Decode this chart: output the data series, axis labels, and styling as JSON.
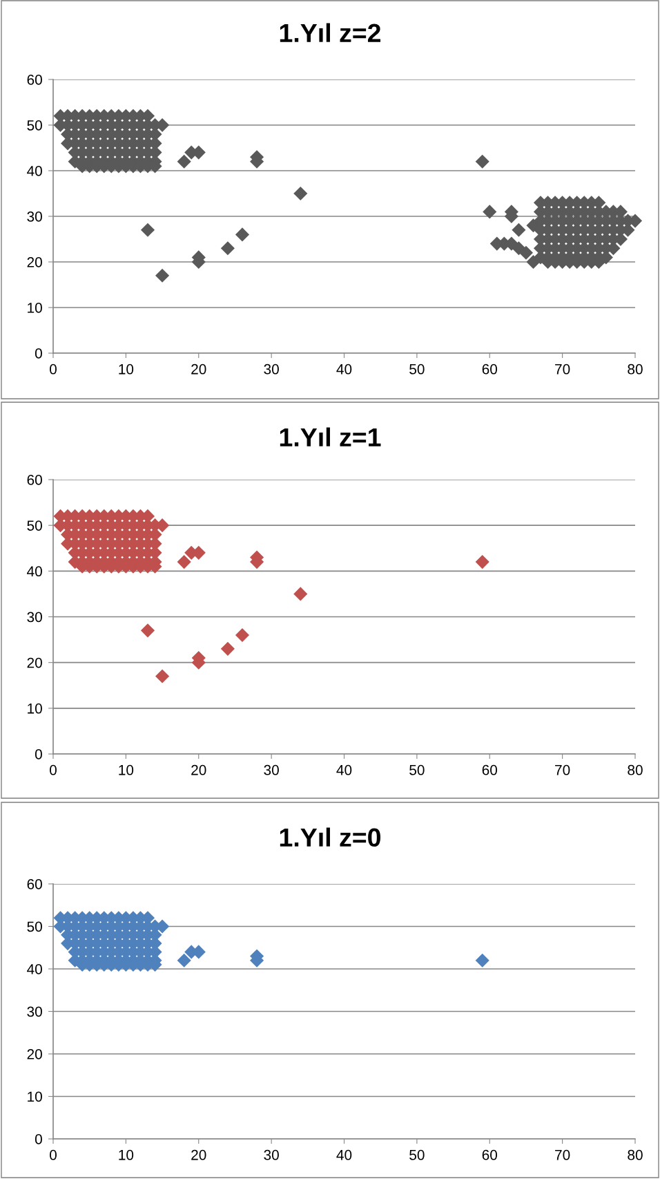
{
  "chart_data": [
    {
      "type": "scatter",
      "title": "1.Yıl z=2",
      "xlim": [
        0,
        80
      ],
      "ylim": [
        0,
        60
      ],
      "xticks": [
        0,
        10,
        20,
        30,
        40,
        50,
        60,
        70,
        80
      ],
      "yticks": [
        0,
        10,
        20,
        30,
        40,
        50,
        60
      ],
      "grid": "y",
      "marker": "diamond",
      "series": [
        {
          "color": "#595959",
          "x": [
            1,
            2,
            3,
            4,
            5,
            6,
            7,
            8,
            9,
            10,
            11,
            12,
            13,
            1,
            2,
            3,
            4,
            5,
            6,
            7,
            8,
            9,
            10,
            11,
            12,
            13,
            14,
            15,
            2,
            3,
            4,
            5,
            6,
            7,
            8,
            9,
            10,
            11,
            12,
            13,
            14,
            2,
            3,
            4,
            5,
            6,
            7,
            8,
            9,
            10,
            11,
            12,
            13,
            14,
            3,
            4,
            5,
            6,
            7,
            8,
            9,
            10,
            11,
            12,
            13,
            14,
            3,
            4,
            5,
            6,
            7,
            8,
            9,
            10,
            11,
            12,
            13,
            14,
            4,
            5,
            6,
            7,
            8,
            9,
            10,
            11,
            12,
            13,
            14,
            13,
            15,
            18,
            19,
            20,
            20,
            20,
            24,
            26,
            28,
            28,
            34,
            59,
            60,
            61,
            62,
            63,
            63,
            63,
            64,
            64,
            65,
            66,
            66,
            67,
            68,
            69,
            70,
            71,
            72,
            73,
            74,
            75,
            67,
            68,
            69,
            70,
            71,
            72,
            73,
            74,
            75,
            76,
            77,
            78,
            67,
            68,
            69,
            70,
            71,
            72,
            73,
            74,
            75,
            76,
            77,
            78,
            79,
            80,
            67,
            68,
            69,
            70,
            71,
            72,
            73,
            74,
            75,
            76,
            77,
            78,
            79,
            67,
            68,
            69,
            70,
            71,
            72,
            73,
            74,
            75,
            76,
            77,
            78,
            67,
            68,
            69,
            70,
            71,
            72,
            73,
            74,
            75,
            76,
            77,
            67,
            68,
            69,
            70,
            71,
            72,
            73,
            74,
            75,
            76,
            68,
            69,
            70,
            71,
            72,
            73,
            74,
            75
          ],
          "values": [
            52,
            52,
            52,
            52,
            52,
            52,
            52,
            52,
            52,
            52,
            52,
            52,
            52,
            50,
            50,
            50,
            50,
            50,
            50,
            50,
            50,
            50,
            50,
            50,
            50,
            50,
            50,
            50,
            48,
            48,
            48,
            48,
            48,
            48,
            48,
            48,
            48,
            48,
            48,
            48,
            48,
            46,
            46,
            46,
            46,
            46,
            46,
            46,
            46,
            46,
            46,
            46,
            46,
            46,
            44,
            44,
            44,
            44,
            44,
            44,
            44,
            44,
            44,
            44,
            44,
            44,
            42,
            42,
            42,
            42,
            42,
            42,
            42,
            42,
            42,
            42,
            42,
            42,
            41,
            41,
            41,
            41,
            41,
            41,
            41,
            41,
            41,
            41,
            41,
            27,
            17,
            42,
            44,
            44,
            21,
            20,
            23,
            26,
            43,
            42,
            35,
            42,
            31,
            24,
            24,
            24,
            31,
            30,
            27,
            23,
            22,
            20,
            28,
            33,
            33,
            33,
            33,
            33,
            33,
            33,
            33,
            33,
            31,
            31,
            31,
            31,
            31,
            31,
            31,
            31,
            31,
            31,
            31,
            31,
            29,
            29,
            29,
            29,
            29,
            29,
            29,
            29,
            29,
            29,
            29,
            29,
            29,
            29,
            27,
            27,
            27,
            27,
            27,
            27,
            27,
            27,
            27,
            27,
            27,
            27,
            27,
            25,
            25,
            25,
            25,
            25,
            25,
            25,
            25,
            25,
            25,
            25,
            25,
            23,
            23,
            23,
            23,
            23,
            23,
            23,
            23,
            23,
            23,
            23,
            21,
            21,
            21,
            21,
            21,
            21,
            21,
            21,
            21,
            21,
            20,
            20,
            20,
            20,
            20,
            20,
            20,
            20
          ]
        }
      ]
    },
    {
      "type": "scatter",
      "title": "1.Yıl z=1",
      "xlim": [
        0,
        80
      ],
      "ylim": [
        0,
        60
      ],
      "xticks": [
        0,
        10,
        20,
        30,
        40,
        50,
        60,
        70,
        80
      ],
      "yticks": [
        0,
        10,
        20,
        30,
        40,
        50,
        60
      ],
      "grid": "y",
      "marker": "diamond",
      "series": [
        {
          "color": "#c0504d",
          "x": [
            1,
            2,
            3,
            4,
            5,
            6,
            7,
            8,
            9,
            10,
            11,
            12,
            13,
            1,
            2,
            3,
            4,
            5,
            6,
            7,
            8,
            9,
            10,
            11,
            12,
            13,
            14,
            15,
            2,
            3,
            4,
            5,
            6,
            7,
            8,
            9,
            10,
            11,
            12,
            13,
            14,
            2,
            3,
            4,
            5,
            6,
            7,
            8,
            9,
            10,
            11,
            12,
            13,
            14,
            3,
            4,
            5,
            6,
            7,
            8,
            9,
            10,
            11,
            12,
            13,
            14,
            3,
            4,
            5,
            6,
            7,
            8,
            9,
            10,
            11,
            12,
            13,
            14,
            4,
            5,
            6,
            7,
            8,
            9,
            10,
            11,
            12,
            13,
            14,
            13,
            15,
            18,
            19,
            20,
            20,
            20,
            24,
            26,
            28,
            28,
            34,
            59
          ],
          "values": [
            52,
            52,
            52,
            52,
            52,
            52,
            52,
            52,
            52,
            52,
            52,
            52,
            52,
            50,
            50,
            50,
            50,
            50,
            50,
            50,
            50,
            50,
            50,
            50,
            50,
            50,
            50,
            50,
            48,
            48,
            48,
            48,
            48,
            48,
            48,
            48,
            48,
            48,
            48,
            48,
            48,
            46,
            46,
            46,
            46,
            46,
            46,
            46,
            46,
            46,
            46,
            46,
            46,
            46,
            44,
            44,
            44,
            44,
            44,
            44,
            44,
            44,
            44,
            44,
            44,
            44,
            42,
            42,
            42,
            42,
            42,
            42,
            42,
            42,
            42,
            42,
            42,
            42,
            41,
            41,
            41,
            41,
            41,
            41,
            41,
            41,
            41,
            41,
            41,
            27,
            17,
            42,
            44,
            44,
            21,
            20,
            23,
            26,
            43,
            42,
            35,
            42
          ]
        }
      ]
    },
    {
      "type": "scatter",
      "title": "1.Yıl z=0",
      "xlim": [
        0,
        80
      ],
      "ylim": [
        0,
        60
      ],
      "xticks": [
        0,
        10,
        20,
        30,
        40,
        50,
        60,
        70,
        80
      ],
      "yticks": [
        0,
        10,
        20,
        30,
        40,
        50,
        60
      ],
      "grid": "y",
      "marker": "diamond",
      "series": [
        {
          "color": "#4f81bd",
          "x": [
            1,
            2,
            3,
            4,
            5,
            6,
            7,
            8,
            9,
            10,
            11,
            12,
            13,
            1,
            2,
            3,
            4,
            5,
            6,
            7,
            8,
            9,
            10,
            11,
            12,
            13,
            14,
            15,
            2,
            3,
            4,
            5,
            6,
            7,
            8,
            9,
            10,
            11,
            12,
            13,
            14,
            2,
            3,
            4,
            5,
            6,
            7,
            8,
            9,
            10,
            11,
            12,
            13,
            14,
            3,
            4,
            5,
            6,
            7,
            8,
            9,
            10,
            11,
            12,
            13,
            14,
            3,
            4,
            5,
            6,
            7,
            8,
            9,
            10,
            11,
            12,
            13,
            14,
            4,
            5,
            6,
            7,
            8,
            9,
            10,
            11,
            12,
            13,
            14,
            18,
            19,
            20,
            28,
            28,
            59
          ],
          "values": [
            52,
            52,
            52,
            52,
            52,
            52,
            52,
            52,
            52,
            52,
            52,
            52,
            52,
            50,
            50,
            50,
            50,
            50,
            50,
            50,
            50,
            50,
            50,
            50,
            50,
            50,
            50,
            50,
            48,
            48,
            48,
            48,
            48,
            48,
            48,
            48,
            48,
            48,
            48,
            48,
            48,
            46,
            46,
            46,
            46,
            46,
            46,
            46,
            46,
            46,
            46,
            46,
            46,
            46,
            44,
            44,
            44,
            44,
            44,
            44,
            44,
            44,
            44,
            44,
            44,
            44,
            42,
            42,
            42,
            42,
            42,
            42,
            42,
            42,
            42,
            42,
            42,
            42,
            41,
            41,
            41,
            41,
            41,
            41,
            41,
            41,
            41,
            41,
            41,
            42,
            44,
            44,
            43,
            42,
            42
          ]
        }
      ]
    }
  ]
}
